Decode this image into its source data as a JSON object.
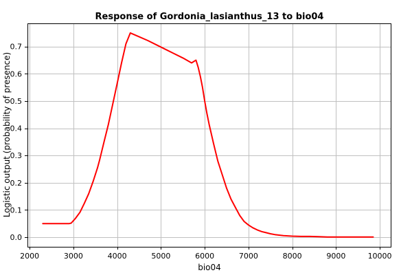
{
  "chart_data": {
    "type": "line",
    "title": "Response of Gordonia_lasianthus_13 to bio04",
    "xlabel": "bio04",
    "ylabel": "Logistic output (probability of presence)",
    "xlim": [
      1950,
      10250
    ],
    "ylim": [
      -0.035,
      0.785
    ],
    "xticks": [
      2000,
      3000,
      4000,
      5000,
      6000,
      7000,
      8000,
      9000,
      10000
    ],
    "yticks": [
      0.0,
      0.1,
      0.2,
      0.3,
      0.4,
      0.5,
      0.6,
      0.7
    ],
    "xtick_labels": [
      "2000",
      "3000",
      "4000",
      "5000",
      "6000",
      "7000",
      "8000",
      "9000",
      "10000"
    ],
    "ytick_labels": [
      "0.0",
      "0.1",
      "0.2",
      "0.3",
      "0.4",
      "0.5",
      "0.6",
      "0.7"
    ],
    "grid": true,
    "series": [
      {
        "color": "#ff0000",
        "x": [
          2300,
          2500,
          2700,
          2900,
          2950,
          3050,
          3150,
          3250,
          3350,
          3450,
          3550,
          3600,
          3700,
          3800,
          3900,
          4000,
          4100,
          4200,
          4300,
          4500,
          4700,
          4900,
          5100,
          5300,
          5500,
          5700,
          5800,
          5850,
          5900,
          5950,
          6000,
          6050,
          6100,
          6150,
          6200,
          6300,
          6400,
          6500,
          6600,
          6700,
          6800,
          6900,
          7000,
          7100,
          7200,
          7300,
          7400,
          7500,
          7600,
          7800,
          8000,
          8200,
          8400,
          8600,
          8800,
          9000,
          9200,
          9400,
          9600,
          9800,
          9850
        ],
        "y": [
          0.05,
          0.05,
          0.05,
          0.05,
          0.052,
          0.07,
          0.092,
          0.125,
          0.16,
          0.205,
          0.255,
          0.285,
          0.35,
          0.415,
          0.49,
          0.565,
          0.64,
          0.71,
          0.75,
          0.736,
          0.722,
          0.706,
          0.69,
          0.674,
          0.658,
          0.64,
          0.65,
          0.624,
          0.59,
          0.55,
          0.5,
          0.455,
          0.415,
          0.38,
          0.345,
          0.28,
          0.23,
          0.18,
          0.14,
          0.11,
          0.08,
          0.058,
          0.045,
          0.035,
          0.027,
          0.021,
          0.017,
          0.013,
          0.01,
          0.006,
          0.004,
          0.003,
          0.003,
          0.002,
          0.001,
          0.001,
          0.001,
          0.001,
          0.001,
          0.001,
          0.001
        ]
      }
    ]
  }
}
